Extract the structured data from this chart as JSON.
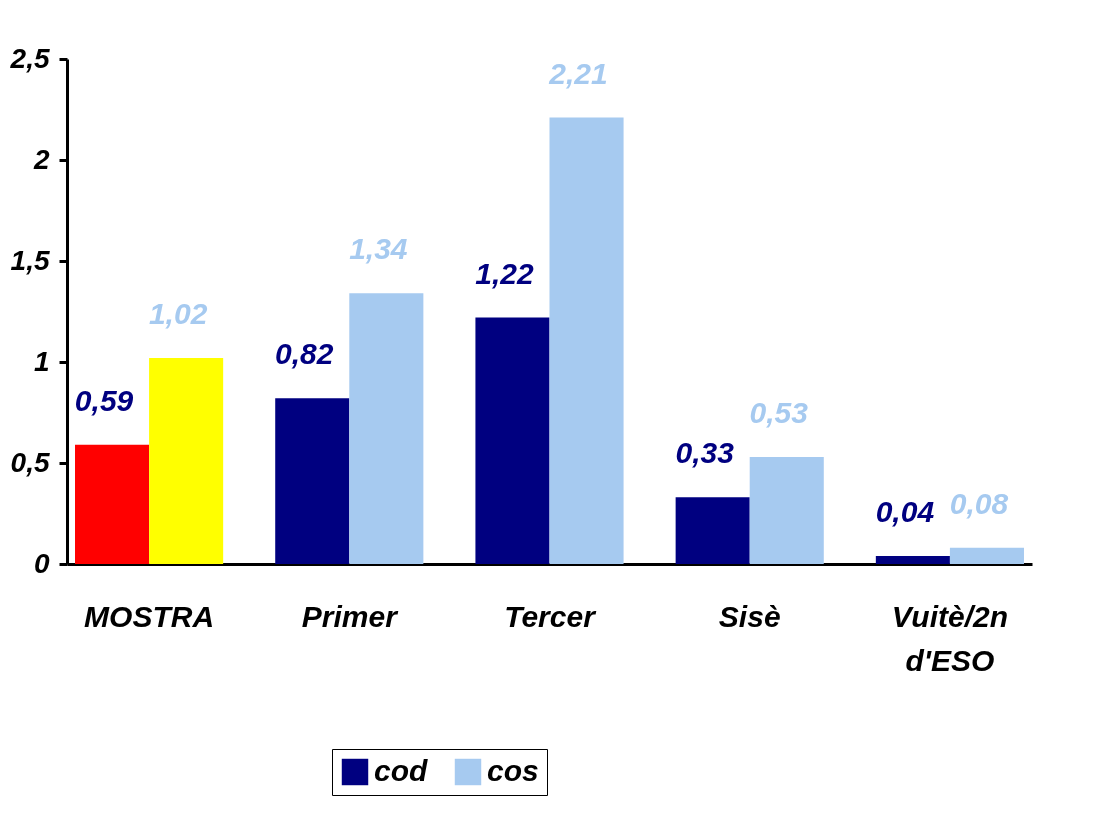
{
  "chart_data": {
    "type": "bar",
    "categories": [
      "MOSTRA",
      "Primer",
      "Tercer",
      "Sisè",
      "Vuitè/2n d'ESO"
    ],
    "series": [
      {
        "name": "cod",
        "color": "#000080",
        "colors": [
          "#ff0000",
          "#000080",
          "#000080",
          "#000080",
          "#000080"
        ],
        "values": [
          0.59,
          0.82,
          1.22,
          0.33,
          0.04
        ],
        "value_labels": [
          "0,59",
          "0,82",
          "1,22",
          "0,33",
          "0,04"
        ]
      },
      {
        "name": "cos",
        "color": "#a6caf0",
        "colors": [
          "#ffff00",
          "#a6caf0",
          "#a6caf0",
          "#a6caf0",
          "#a6caf0"
        ],
        "values": [
          1.02,
          1.34,
          2.21,
          0.53,
          0.08
        ],
        "value_labels": [
          "1,02",
          "1,34",
          "2,21",
          "0,53",
          "0,08"
        ]
      }
    ],
    "ylim": [
      0,
      2.5
    ],
    "yticks": [
      0,
      {
        "value": 0.5,
        "label": "0,5"
      },
      1,
      {
        "value": 1.5,
        "label": "1,5"
      },
      2,
      {
        "value": 2.5,
        "label": "2,5"
      }
    ],
    "grid": false,
    "legend": "bottom"
  }
}
